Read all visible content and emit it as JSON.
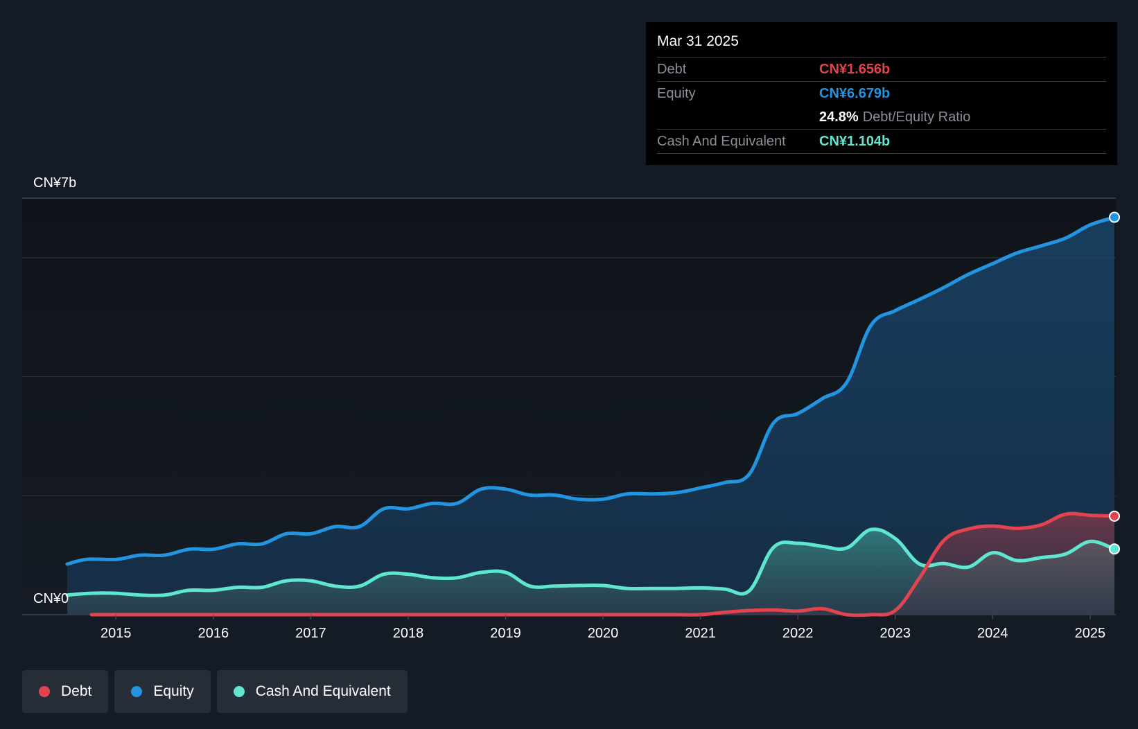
{
  "chart_data": {
    "type": "area",
    "y_axis": {
      "top_label": "CN¥7b",
      "bottom_label": "CN¥0",
      "ylim": [
        0,
        7
      ]
    },
    "x_ticks": [
      "2015",
      "2016",
      "2017",
      "2018",
      "2019",
      "2020",
      "2021",
      "2022",
      "2023",
      "2024",
      "2025"
    ],
    "xlim": [
      2014.5,
      2025.25
    ],
    "series": [
      {
        "name": "Equity",
        "color": "#2394df",
        "points": [
          [
            2014.5,
            0.85
          ],
          [
            2014.7,
            0.93
          ],
          [
            2015.0,
            0.93
          ],
          [
            2015.25,
            1.0
          ],
          [
            2015.5,
            1.0
          ],
          [
            2015.75,
            1.1
          ],
          [
            2016.0,
            1.1
          ],
          [
            2016.25,
            1.19
          ],
          [
            2016.5,
            1.19
          ],
          [
            2016.75,
            1.36
          ],
          [
            2017.0,
            1.36
          ],
          [
            2017.25,
            1.48
          ],
          [
            2017.5,
            1.48
          ],
          [
            2017.75,
            1.78
          ],
          [
            2018.0,
            1.78
          ],
          [
            2018.25,
            1.87
          ],
          [
            2018.5,
            1.87
          ],
          [
            2018.75,
            2.11
          ],
          [
            2019.0,
            2.11
          ],
          [
            2019.25,
            2.01
          ],
          [
            2019.5,
            2.01
          ],
          [
            2019.75,
            1.94
          ],
          [
            2020.0,
            1.94
          ],
          [
            2020.25,
            2.03
          ],
          [
            2020.5,
            2.03
          ],
          [
            2020.75,
            2.05
          ],
          [
            2021.0,
            2.13
          ],
          [
            2021.25,
            2.22
          ],
          [
            2021.5,
            2.36
          ],
          [
            2021.75,
            3.22
          ],
          [
            2022.0,
            3.38
          ],
          [
            2022.25,
            3.63
          ],
          [
            2022.5,
            3.9
          ],
          [
            2022.75,
            4.86
          ],
          [
            2023.0,
            5.11
          ],
          [
            2023.25,
            5.3
          ],
          [
            2023.5,
            5.5
          ],
          [
            2023.75,
            5.72
          ],
          [
            2024.0,
            5.9
          ],
          [
            2024.25,
            6.08
          ],
          [
            2024.5,
            6.2
          ],
          [
            2024.75,
            6.33
          ],
          [
            2025.0,
            6.55
          ],
          [
            2025.25,
            6.679
          ]
        ]
      },
      {
        "name": "Cash And Equivalent",
        "color": "#5fe6d1",
        "points": [
          [
            2014.5,
            0.33
          ],
          [
            2014.75,
            0.36
          ],
          [
            2015.0,
            0.36
          ],
          [
            2015.25,
            0.33
          ],
          [
            2015.5,
            0.33
          ],
          [
            2015.75,
            0.41
          ],
          [
            2016.0,
            0.41
          ],
          [
            2016.25,
            0.46
          ],
          [
            2016.5,
            0.46
          ],
          [
            2016.75,
            0.57
          ],
          [
            2017.0,
            0.57
          ],
          [
            2017.25,
            0.48
          ],
          [
            2017.5,
            0.48
          ],
          [
            2017.75,
            0.68
          ],
          [
            2018.0,
            0.68
          ],
          [
            2018.25,
            0.62
          ],
          [
            2018.5,
            0.62
          ],
          [
            2018.75,
            0.71
          ],
          [
            2019.0,
            0.71
          ],
          [
            2019.25,
            0.48
          ],
          [
            2019.5,
            0.48
          ],
          [
            2019.75,
            0.49
          ],
          [
            2020.0,
            0.49
          ],
          [
            2020.25,
            0.44
          ],
          [
            2020.5,
            0.44
          ],
          [
            2020.75,
            0.44
          ],
          [
            2021.0,
            0.45
          ],
          [
            2021.25,
            0.43
          ],
          [
            2021.5,
            0.4
          ],
          [
            2021.75,
            1.13
          ],
          [
            2022.0,
            1.2
          ],
          [
            2022.25,
            1.15
          ],
          [
            2022.5,
            1.12
          ],
          [
            2022.75,
            1.43
          ],
          [
            2023.0,
            1.28
          ],
          [
            2023.25,
            0.85
          ],
          [
            2023.5,
            0.86
          ],
          [
            2023.75,
            0.8
          ],
          [
            2024.0,
            1.04
          ],
          [
            2024.25,
            0.91
          ],
          [
            2024.5,
            0.96
          ],
          [
            2024.75,
            1.02
          ],
          [
            2025.0,
            1.23
          ],
          [
            2025.25,
            1.104
          ]
        ]
      },
      {
        "name": "Debt",
        "color": "#e2434f",
        "points": [
          [
            2014.75,
            0.0
          ],
          [
            2015.0,
            0.0
          ],
          [
            2016.0,
            0.0
          ],
          [
            2017.0,
            0.0
          ],
          [
            2018.0,
            0.0
          ],
          [
            2019.0,
            0.0
          ],
          [
            2020.0,
            0.0
          ],
          [
            2020.75,
            0.0
          ],
          [
            2021.0,
            0.0
          ],
          [
            2021.25,
            0.04
          ],
          [
            2021.5,
            0.07
          ],
          [
            2021.75,
            0.08
          ],
          [
            2022.0,
            0.06
          ],
          [
            2022.25,
            0.1
          ],
          [
            2022.5,
            0.0
          ],
          [
            2022.75,
            0.0
          ],
          [
            2023.0,
            0.07
          ],
          [
            2023.25,
            0.62
          ],
          [
            2023.5,
            1.25
          ],
          [
            2023.75,
            1.44
          ],
          [
            2024.0,
            1.49
          ],
          [
            2024.25,
            1.45
          ],
          [
            2024.5,
            1.51
          ],
          [
            2024.75,
            1.69
          ],
          [
            2025.0,
            1.67
          ],
          [
            2025.25,
            1.656
          ]
        ]
      }
    ]
  },
  "tooltip": {
    "date": "Mar 31 2025",
    "debt_label": "Debt",
    "debt_value": "CN¥1.656b",
    "equity_label": "Equity",
    "equity_value": "CN¥6.679b",
    "ratio_value": "24.8%",
    "ratio_label": "Debt/Equity Ratio",
    "cash_label": "Cash And Equivalent",
    "cash_value": "CN¥1.104b"
  },
  "legend": [
    {
      "label": "Debt",
      "color": "#e2434f"
    },
    {
      "label": "Equity",
      "color": "#2394df"
    },
    {
      "label": "Cash And Equivalent",
      "color": "#5fe6d1"
    }
  ]
}
